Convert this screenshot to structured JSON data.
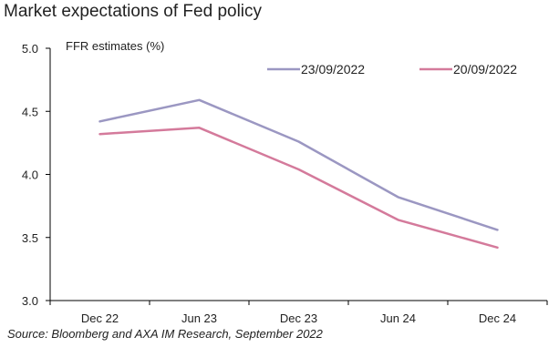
{
  "header": {
    "title": "Market expectations of Fed policy"
  },
  "footer": {
    "source": "Source: Bloomberg and AXA IM Research, September 2022"
  },
  "chart_data": {
    "type": "line",
    "title": "Market expectations of Fed policy",
    "ylabel": "FFR estimates (%)",
    "xlabel": "",
    "categories": [
      "Dec 22",
      "Jun 23",
      "Dec 23",
      "Jun 24",
      "Dec 24"
    ],
    "ylim": [
      3.0,
      5.0
    ],
    "yticks": [
      "3.0",
      "3.5",
      "4.0",
      "4.5",
      "5.0"
    ],
    "grid": false,
    "legend_position": "top-right",
    "series": [
      {
        "name": "23/09/2022",
        "color": "#9b97c2",
        "values": [
          4.42,
          4.59,
          4.26,
          3.82,
          3.56
        ]
      },
      {
        "name": "20/09/2022",
        "color": "#d47a9b",
        "values": [
          4.32,
          4.37,
          4.04,
          3.64,
          3.42
        ]
      }
    ]
  }
}
